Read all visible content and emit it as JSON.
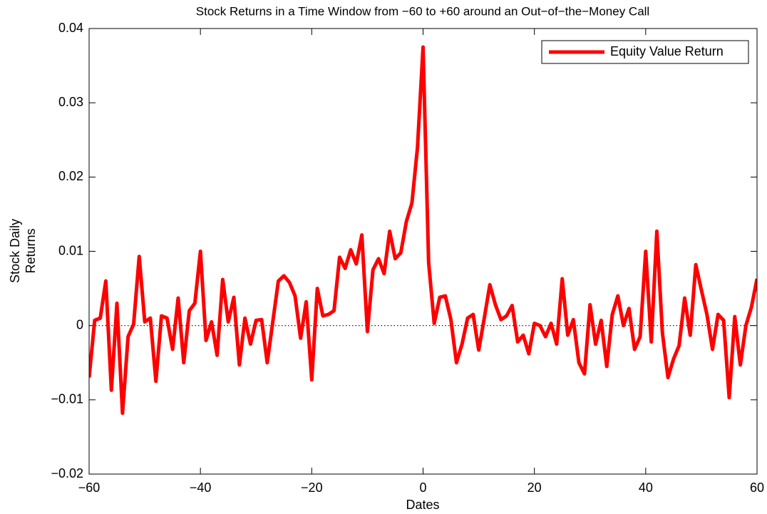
{
  "chart_data": {
    "type": "line",
    "title": "Stock Returns in a Time Window from −60 to +60 around an Out−of−the−Money Call",
    "xlabel": "Dates",
    "ylabel": [
      "Stock Daily",
      "Returns"
    ],
    "x": [
      -60,
      -59,
      -58,
      -57,
      -56,
      -55,
      -54,
      -53,
      -52,
      -51,
      -50,
      -49,
      -48,
      -47,
      -46,
      -45,
      -44,
      -43,
      -42,
      -41,
      -40,
      -39,
      -38,
      -37,
      -36,
      -35,
      -34,
      -33,
      -32,
      -31,
      -30,
      -29,
      -28,
      -27,
      -26,
      -25,
      -24,
      -23,
      -22,
      -21,
      -20,
      -19,
      -18,
      -17,
      -16,
      -15,
      -14,
      -13,
      -12,
      -11,
      -10,
      -9,
      -8,
      -7,
      -6,
      -5,
      -4,
      -3,
      -2,
      -1,
      0,
      1,
      2,
      3,
      4,
      5,
      6,
      7,
      8,
      9,
      10,
      11,
      12,
      13,
      14,
      15,
      16,
      17,
      18,
      19,
      20,
      21,
      22,
      23,
      24,
      25,
      26,
      27,
      28,
      29,
      30,
      31,
      32,
      33,
      34,
      35,
      36,
      37,
      38,
      39,
      40,
      41,
      42,
      43,
      44,
      45,
      46,
      47,
      48,
      49,
      50,
      51,
      52,
      53,
      54,
      55,
      56,
      57,
      58,
      59,
      60
    ],
    "series": [
      {
        "name": "Equity Value Return",
        "color": "#ff0000",
        "values": [
          -0.007,
          0.0007,
          0.001,
          0.006,
          -0.0087,
          0.003,
          -0.0118,
          -0.0015,
          0.0002,
          0.0093,
          0.0005,
          0.001,
          -0.0075,
          0.0013,
          0.001,
          -0.0032,
          0.0037,
          -0.005,
          0.002,
          0.003,
          0.01,
          -0.002,
          0.0005,
          -0.004,
          0.0062,
          0.0005,
          0.0038,
          -0.0053,
          0.001,
          -0.0025,
          0.0007,
          0.0008,
          -0.005,
          0.0005,
          0.006,
          0.0067,
          0.0058,
          0.004,
          -0.0017,
          0.0032,
          -0.0073,
          0.005,
          0.0013,
          0.0015,
          0.002,
          0.0092,
          0.0077,
          0.0102,
          0.0083,
          0.0122,
          -0.0008,
          0.0075,
          0.009,
          0.007,
          0.0127,
          0.009,
          0.0098,
          0.014,
          0.0165,
          0.024,
          0.0375,
          0.0085,
          0.0003,
          0.0038,
          0.004,
          0.0008,
          -0.005,
          -0.0025,
          0.001,
          0.0015,
          -0.0033,
          0.001,
          0.0055,
          0.0028,
          0.0008,
          0.0013,
          0.0027,
          -0.0022,
          -0.0013,
          -0.0038,
          0.0003,
          0,
          -0.0015,
          0.0003,
          -0.0025,
          0.0063,
          -0.0013,
          0.0008,
          -0.005,
          -0.0065,
          0.0028,
          -0.0025,
          0.0007,
          -0.0055,
          0.0015,
          0.004,
          0,
          0.0023,
          -0.0032,
          -0.0015,
          0.01,
          -0.0022,
          0.0127,
          -0.001,
          -0.007,
          -0.0045,
          -0.0027,
          0.0037,
          -0.0013,
          0.0082,
          0.0048,
          0.0015,
          -0.0032,
          0.0015,
          0.0007,
          -0.0097,
          0.0012,
          -0.0053,
          0,
          0.0025,
          0.0063
        ]
      }
    ],
    "xlim": [
      -60,
      60
    ],
    "xticks": [
      {
        "value": -60,
        "label": "−60"
      },
      {
        "value": -40,
        "label": "−40"
      },
      {
        "value": -20,
        "label": "−20"
      },
      0,
      20,
      40,
      60
    ],
    "ylim": [
      -0.02,
      0.04
    ],
    "yticks": [
      {
        "value": -0.02,
        "label": "−0.02"
      },
      {
        "value": -0.01,
        "label": "−0.01"
      },
      0,
      0.01,
      0.02,
      0.03,
      0.04
    ],
    "zero_line": true,
    "legend": "upper right",
    "grid": false
  }
}
